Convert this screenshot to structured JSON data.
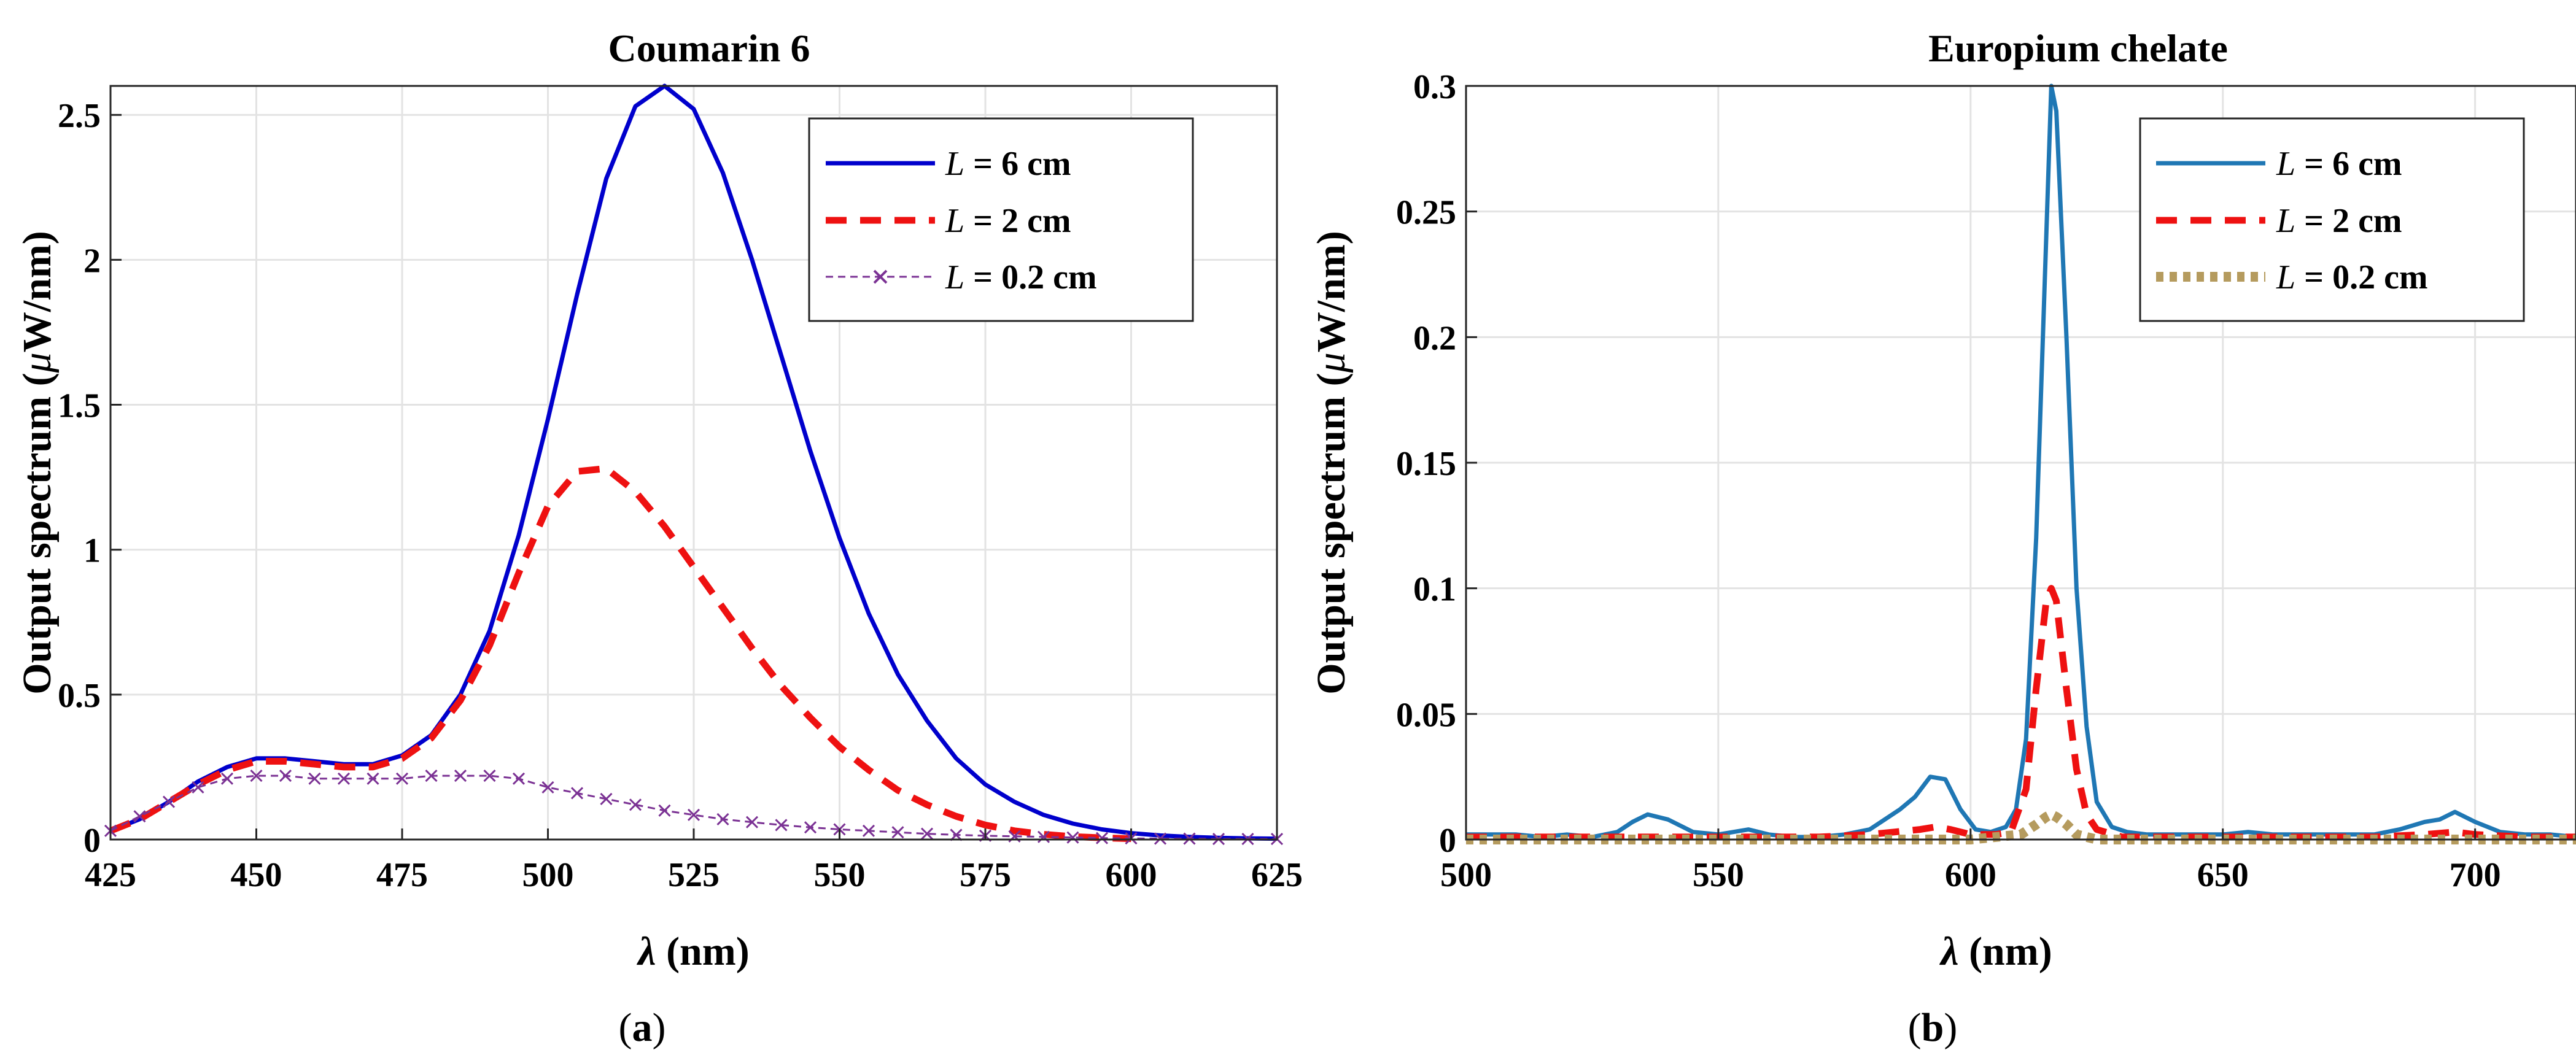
{
  "chart_data": [
    {
      "type": "line",
      "title": "Coumarin 6",
      "xlabel_symbol": "λ",
      "xlabel_unit": " (nm)",
      "ylabel": "Output spectrum (",
      "ylabel_mu": "μ",
      "ylabel_end": "W/nm)",
      "xlim": [
        425,
        625
      ],
      "ylim": [
        0,
        2.6
      ],
      "xticks": [
        425,
        450,
        475,
        500,
        525,
        550,
        575,
        600,
        625
      ],
      "xtick_labels": [
        "425",
        "450",
        "475",
        "500",
        "525",
        "550",
        "575",
        "600",
        "625"
      ],
      "yticks": [
        0,
        0.5,
        1,
        1.5,
        2,
        2.5
      ],
      "ytick_labels": [
        "0",
        "0.5",
        "1",
        "1.5",
        "2",
        "2.5"
      ],
      "grid": true,
      "legend_position": "top-right",
      "caption_open": "(",
      "caption_letter": "a",
      "caption_close": ")",
      "series": [
        {
          "name": "L = 6 cm",
          "legend_var": "L",
          "legend_rest": " = 6 cm",
          "color": "#0000CC",
          "style": "solid",
          "x": [
            425,
            430,
            435,
            440,
            445,
            450,
            455,
            460,
            465,
            470,
            475,
            480,
            485,
            490,
            495,
            500,
            505,
            510,
            515,
            520,
            525,
            530,
            535,
            540,
            545,
            550,
            555,
            560,
            565,
            570,
            575,
            580,
            585,
            590,
            595,
            600,
            605,
            610,
            615,
            620,
            625
          ],
          "y": [
            0.03,
            0.07,
            0.13,
            0.2,
            0.25,
            0.28,
            0.28,
            0.27,
            0.26,
            0.26,
            0.29,
            0.36,
            0.5,
            0.72,
            1.05,
            1.45,
            1.88,
            2.28,
            2.53,
            2.6,
            2.52,
            2.3,
            2.0,
            1.67,
            1.34,
            1.04,
            0.78,
            0.57,
            0.41,
            0.28,
            0.19,
            0.13,
            0.085,
            0.055,
            0.035,
            0.022,
            0.014,
            0.009,
            0.006,
            0.004,
            0.003
          ]
        },
        {
          "name": "L = 2 cm",
          "legend_var": "L",
          "legend_rest": " = 2 cm",
          "color": "#EE1111",
          "style": "dashed",
          "x": [
            425,
            430,
            435,
            440,
            445,
            450,
            455,
            460,
            465,
            470,
            475,
            480,
            485,
            490,
            495,
            500,
            505,
            510,
            515,
            520,
            525,
            530,
            535,
            540,
            545,
            550,
            555,
            560,
            565,
            570,
            575,
            580,
            585,
            590,
            595,
            600
          ],
          "y": [
            0.03,
            0.07,
            0.13,
            0.19,
            0.24,
            0.27,
            0.27,
            0.26,
            0.25,
            0.25,
            0.28,
            0.35,
            0.48,
            0.67,
            0.92,
            1.15,
            1.27,
            1.28,
            1.2,
            1.08,
            0.94,
            0.8,
            0.66,
            0.53,
            0.42,
            0.32,
            0.24,
            0.17,
            0.12,
            0.08,
            0.05,
            0.03,
            0.018,
            0.01,
            0.006,
            0.003
          ]
        },
        {
          "name": "L = 0.2 cm",
          "legend_var": "L",
          "legend_rest": " = 0.2 cm",
          "color": "#7B3294",
          "style": "dashed-x",
          "x": [
            425,
            430,
            435,
            440,
            445,
            450,
            455,
            460,
            465,
            470,
            475,
            480,
            485,
            490,
            495,
            500,
            505,
            510,
            515,
            520,
            525,
            530,
            535,
            540,
            545,
            550,
            555,
            560,
            565,
            570,
            575,
            580,
            585,
            590,
            595,
            600,
            605,
            610,
            615,
            620,
            625
          ],
          "y": [
            0.03,
            0.08,
            0.13,
            0.18,
            0.21,
            0.22,
            0.22,
            0.21,
            0.21,
            0.21,
            0.21,
            0.22,
            0.22,
            0.22,
            0.21,
            0.18,
            0.16,
            0.14,
            0.12,
            0.1,
            0.085,
            0.07,
            0.06,
            0.05,
            0.042,
            0.035,
            0.03,
            0.025,
            0.02,
            0.016,
            0.013,
            0.011,
            0.009,
            0.007,
            0.005,
            0.004,
            0.003,
            0.003,
            0.002,
            0.002,
            0.002
          ]
        }
      ]
    },
    {
      "type": "line",
      "title": "Europium chelate",
      "xlabel_symbol": "λ",
      "xlabel_unit": " (nm)",
      "ylabel": "Output spectrum (",
      "ylabel_mu": "μ",
      "ylabel_end": "W/nm)",
      "xlim": [
        500,
        720
      ],
      "ylim": [
        0,
        0.3
      ],
      "xticks": [
        500,
        550,
        600,
        650,
        700
      ],
      "xtick_labels": [
        "500",
        "550",
        "600",
        "650",
        "700"
      ],
      "yticks": [
        0,
        0.05,
        0.1,
        0.15,
        0.2,
        0.25,
        0.3
      ],
      "ytick_labels": [
        "0",
        "0.05",
        "0.1",
        "0.15",
        "0.2",
        "0.25",
        "0.3"
      ],
      "grid": true,
      "legend_position": "top-right",
      "caption_open": "(",
      "caption_letter": "b",
      "caption_close": ")",
      "series": [
        {
          "name": "L = 6 cm",
          "legend_var": "L",
          "legend_rest": " = 6 cm",
          "color": "#1F77B4",
          "style": "solid",
          "x": [
            500,
            505,
            510,
            515,
            520,
            525,
            530,
            533,
            536,
            540,
            545,
            550,
            553,
            556,
            560,
            565,
            570,
            575,
            580,
            583,
            586,
            589,
            592,
            595,
            598,
            601,
            604,
            607,
            609,
            611,
            613,
            615,
            616,
            617,
            619,
            621,
            623,
            625,
            628,
            631,
            635,
            640,
            645,
            650,
            655,
            660,
            665,
            670,
            675,
            680,
            685,
            690,
            693,
            696,
            700,
            705,
            710,
            715,
            720
          ],
          "y": [
            0.002,
            0.002,
            0.002,
            0.001,
            0.002,
            0.001,
            0.003,
            0.007,
            0.01,
            0.008,
            0.003,
            0.002,
            0.003,
            0.004,
            0.002,
            0.001,
            0.001,
            0.002,
            0.004,
            0.008,
            0.012,
            0.017,
            0.025,
            0.024,
            0.012,
            0.004,
            0.003,
            0.005,
            0.012,
            0.04,
            0.12,
            0.24,
            0.3,
            0.29,
            0.2,
            0.1,
            0.045,
            0.015,
            0.005,
            0.003,
            0.002,
            0.002,
            0.002,
            0.002,
            0.003,
            0.002,
            0.002,
            0.002,
            0.002,
            0.002,
            0.004,
            0.007,
            0.008,
            0.011,
            0.007,
            0.003,
            0.002,
            0.002,
            0.001
          ]
        },
        {
          "name": "L = 2 cm",
          "legend_var": "L",
          "legend_rest": " = 2 cm",
          "color": "#EE1111",
          "style": "dashed",
          "x": [
            500,
            510,
            520,
            530,
            540,
            550,
            560,
            570,
            580,
            585,
            590,
            593,
            596,
            600,
            605,
            608,
            611,
            613,
            615,
            616,
            617,
            619,
            621,
            623,
            625,
            630,
            640,
            650,
            660,
            670,
            680,
            690,
            696,
            700,
            710,
            720
          ],
          "y": [
            0.001,
            0.001,
            0.001,
            0.001,
            0.001,
            0.001,
            0.001,
            0.001,
            0.002,
            0.003,
            0.004,
            0.005,
            0.004,
            0.002,
            0.002,
            0.003,
            0.02,
            0.06,
            0.095,
            0.1,
            0.095,
            0.06,
            0.028,
            0.01,
            0.004,
            0.001,
            0.001,
            0.001,
            0.001,
            0.001,
            0.001,
            0.002,
            0.003,
            0.002,
            0.001,
            0.001
          ]
        },
        {
          "name": "L = 0.2 cm",
          "legend_var": "L",
          "legend_rest": " = 0.2 cm",
          "color": "#B59B5E",
          "style": "dotted",
          "x": [
            500,
            520,
            540,
            560,
            580,
            600,
            610,
            613,
            615,
            616,
            617,
            619,
            621,
            625,
            640,
            660,
            680,
            700,
            720
          ],
          "y": [
            0,
            0,
            0,
            0,
            0,
            0,
            0.002,
            0.006,
            0.009,
            0.01,
            0.009,
            0.006,
            0.002,
            0,
            0,
            0,
            0,
            0,
            0
          ]
        }
      ]
    }
  ]
}
